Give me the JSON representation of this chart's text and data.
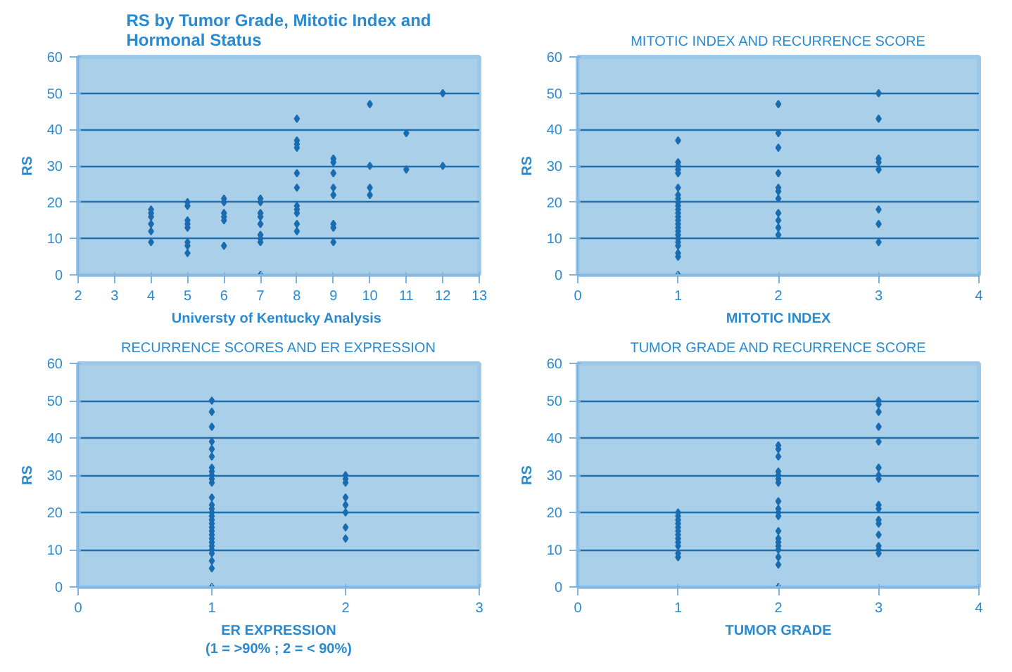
{
  "chart_data": [
    {
      "type": "scatter",
      "title": "RS by Tumor Grade, Mitotic Index and Hormonal Status",
      "xlabel": "Universty of Kentucky  Analysis",
      "ylabel": "RS",
      "marker": "diamond",
      "grid": "y",
      "xlim": [
        2,
        13
      ],
      "xticks": [
        2,
        3,
        4,
        5,
        6,
        7,
        8,
        9,
        10,
        11,
        12,
        13
      ],
      "ylim": [
        0,
        60
      ],
      "yticks": [
        0,
        10,
        20,
        30,
        40,
        50,
        60
      ],
      "series": [
        {
          "color": "#1a6cb0",
          "x": [
            4,
            4,
            4,
            4,
            4,
            4,
            5,
            5,
            5,
            5,
            5,
            5,
            5,
            5,
            6,
            6,
            6,
            6,
            6,
            6,
            7,
            7,
            7,
            7,
            7,
            7,
            7,
            7,
            7,
            8,
            8,
            8,
            8,
            8,
            8,
            8,
            8,
            8,
            8,
            8,
            9,
            9,
            9,
            9,
            9,
            9,
            9,
            9,
            10,
            10,
            10,
            10,
            11,
            11,
            12,
            12
          ],
          "values": [
            9,
            12,
            14,
            16,
            17,
            18,
            6,
            8,
            9,
            13,
            14,
            15,
            19,
            20,
            8,
            15,
            16,
            17,
            20,
            21,
            0,
            9,
            10,
            11,
            14,
            16,
            17,
            20,
            21,
            12,
            14,
            17,
            18,
            19,
            24,
            28,
            35,
            36,
            37,
            43,
            9,
            13,
            14,
            22,
            24,
            28,
            31,
            32,
            22,
            24,
            30,
            47,
            29,
            39,
            30,
            50
          ]
        }
      ]
    },
    {
      "type": "scatter",
      "title": "MITOTIC INDEX AND RECURRENCE SCORE",
      "xlabel": "MITOTIC INDEX",
      "ylabel": "RS",
      "marker": "diamond",
      "grid": "y",
      "xlim": [
        0,
        4
      ],
      "xticks": [
        0,
        1,
        2,
        3,
        4
      ],
      "ylim": [
        0,
        60
      ],
      "yticks": [
        0,
        10,
        20,
        30,
        40,
        50,
        60
      ],
      "series": [
        {
          "color": "#1a6cb0",
          "x": [
            1,
            1,
            1,
            1,
            1,
            1,
            1,
            1,
            1,
            1,
            1,
            1,
            1,
            1,
            1,
            1,
            1,
            1,
            1,
            1,
            1,
            1,
            1,
            1,
            2,
            2,
            2,
            2,
            2,
            2,
            2,
            2,
            2,
            2,
            2,
            3,
            3,
            3,
            3,
            3,
            3,
            3,
            3
          ],
          "values": [
            0,
            5,
            6,
            8,
            9,
            10,
            11,
            12,
            13,
            14,
            15,
            16,
            17,
            18,
            19,
            20,
            21,
            22,
            24,
            28,
            29,
            30,
            31,
            37,
            11,
            13,
            15,
            17,
            21,
            23,
            24,
            28,
            35,
            39,
            47,
            9,
            14,
            18,
            29,
            31,
            32,
            43,
            50
          ]
        }
      ]
    },
    {
      "type": "scatter",
      "title": "RECURRENCE SCORES AND ER EXPRESSION",
      "xlabel": "ER EXPRESSION\n(1 = >90% ; 2 = < 90%)",
      "ylabel": "RS",
      "marker": "diamond",
      "grid": "y",
      "xlim": [
        0,
        3
      ],
      "xticks": [
        0,
        1,
        2,
        3
      ],
      "ylim": [
        0,
        60
      ],
      "yticks": [
        0,
        10,
        20,
        30,
        40,
        50,
        60
      ],
      "series": [
        {
          "color": "#1a6cb0",
          "x": [
            1,
            1,
            1,
            1,
            1,
            1,
            1,
            1,
            1,
            1,
            1,
            1,
            1,
            1,
            1,
            1,
            1,
            1,
            1,
            1,
            1,
            1,
            1,
            1,
            1,
            1,
            1,
            1,
            1,
            2,
            2,
            2,
            2,
            2,
            2,
            2,
            2
          ],
          "values": [
            0,
            5,
            7,
            9,
            10,
            11,
            12,
            13,
            14,
            15,
            16,
            17,
            18,
            19,
            20,
            21,
            22,
            24,
            28,
            29,
            30,
            31,
            32,
            35,
            37,
            39,
            43,
            47,
            50,
            13,
            16,
            20,
            22,
            24,
            28,
            29,
            30
          ]
        }
      ]
    },
    {
      "type": "scatter",
      "title": "TUMOR GRADE AND RECURRENCE SCORE",
      "xlabel": "TUMOR GRADE",
      "ylabel": "RS",
      "marker": "diamond",
      "grid": "y",
      "xlim": [
        0,
        4
      ],
      "xticks": [
        0,
        1,
        2,
        3,
        4
      ],
      "ylim": [
        0,
        60
      ],
      "yticks": [
        0,
        10,
        20,
        30,
        40,
        50,
        60
      ],
      "series": [
        {
          "color": "#1a6cb0",
          "x": [
            1,
            1,
            1,
            1,
            1,
            1,
            1,
            1,
            1,
            1,
            1,
            1,
            2,
            2,
            2,
            2,
            2,
            2,
            2,
            2,
            2,
            2,
            2,
            2,
            2,
            2,
            2,
            2,
            2,
            2,
            2,
            3,
            3,
            3,
            3,
            3,
            3,
            3,
            3,
            3,
            3,
            3,
            3,
            3,
            3,
            3,
            3
          ],
          "values": [
            8,
            9,
            11,
            12,
            13,
            14,
            15,
            16,
            17,
            18,
            19,
            20,
            0,
            6,
            8,
            10,
            11,
            12,
            13,
            15,
            19,
            20,
            21,
            23,
            28,
            29,
            30,
            31,
            35,
            37,
            38,
            9,
            10,
            11,
            14,
            17,
            18,
            21,
            22,
            29,
            30,
            32,
            39,
            43,
            47,
            49,
            50
          ]
        }
      ]
    }
  ]
}
